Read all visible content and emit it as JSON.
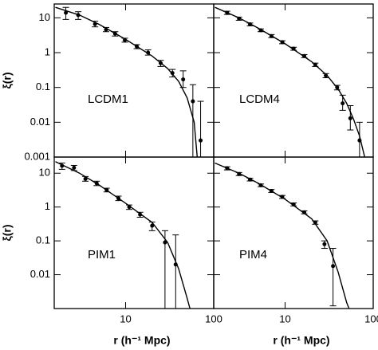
{
  "chart_data": [
    {
      "type": "scatter",
      "label": "LCDM1",
      "ylabel": "ξ(r)",
      "log_x": true,
      "log_y": true,
      "xlim": [
        1.55,
        100
      ],
      "ylim": [
        0.001,
        25
      ],
      "xticks": [
        10,
        100
      ],
      "yticks": [
        0.001,
        0.01,
        0.1,
        1,
        10
      ],
      "points": {
        "x": [
          2.1,
          2.9,
          4.5,
          6.0,
          7.6,
          9.8,
          13.4,
          18,
          25,
          34,
          45,
          58,
          71
        ],
        "y": [
          14,
          12,
          6.6,
          4.6,
          3.5,
          2.3,
          1.5,
          1.0,
          0.5,
          0.26,
          0.17,
          0.04,
          0.003
        ],
        "ylow": [
          9,
          9,
          5.5,
          4,
          3,
          2,
          1.3,
          0.85,
          0.4,
          0.2,
          0.1,
          0.001,
          0.001
        ],
        "yhigh": [
          20,
          15,
          8,
          5.3,
          4,
          2.6,
          1.7,
          1.2,
          0.6,
          0.33,
          0.3,
          0.12,
          0.04
        ]
      },
      "model": {
        "x": [
          1.6,
          3,
          5,
          10,
          20,
          30,
          40,
          50,
          60,
          65
        ],
        "y": [
          20,
          12,
          6.5,
          2.4,
          0.8,
          0.35,
          0.15,
          0.05,
          0.01,
          0.001
        ]
      }
    },
    {
      "type": "scatter",
      "label": "LCDM4",
      "log_x": true,
      "log_y": true,
      "xlim": [
        1.55,
        100
      ],
      "ylim": [
        0.001,
        25
      ],
      "xticks": [
        10,
        100
      ],
      "yticks": [
        0.001,
        0.01,
        0.1,
        1,
        10
      ],
      "points": {
        "x": [
          2.2,
          3,
          4,
          5.3,
          7,
          9.3,
          12.5,
          16.5,
          22,
          29,
          39,
          45,
          55,
          70
        ],
        "y": [
          14,
          9.5,
          6.5,
          4.4,
          3,
          2,
          1.3,
          0.8,
          0.45,
          0.22,
          0.1,
          0.035,
          0.013,
          0.003
        ],
        "ylow": [
          12.5,
          8.5,
          5.9,
          4,
          2.7,
          1.8,
          1.17,
          0.72,
          0.4,
          0.19,
          0.085,
          0.022,
          0.006,
          0.001
        ],
        "yhigh": [
          15.5,
          10.5,
          7.1,
          4.8,
          3.3,
          2.2,
          1.43,
          0.88,
          0.5,
          0.25,
          0.115,
          0.06,
          0.03,
          0.01
        ]
      },
      "model": {
        "x": [
          1.6,
          3,
          5,
          10,
          20,
          30,
          40,
          50,
          60,
          70,
          80
        ],
        "y": [
          20,
          10,
          5,
          1.8,
          0.55,
          0.22,
          0.09,
          0.035,
          0.012,
          0.004,
          0.001
        ]
      }
    },
    {
      "type": "scatter",
      "label": "PIM1",
      "xlabel": "r  (h⁻¹ Mpc)",
      "ylabel": "ξ(r)",
      "log_x": true,
      "log_y": true,
      "xlim": [
        1.55,
        100
      ],
      "ylim": [
        0.001,
        30
      ],
      "xticks": [
        10,
        100
      ],
      "yticks": [
        0.01,
        0.1,
        1,
        10
      ],
      "points": {
        "x": [
          1.9,
          2.6,
          3.5,
          4.7,
          6.1,
          8.3,
          11,
          14.6,
          20,
          28,
          37
        ],
        "y": [
          16.5,
          14.5,
          6.8,
          5,
          3.2,
          1.8,
          1.0,
          0.6,
          0.28,
          0.09,
          0.02
        ],
        "ylow": [
          13,
          12,
          5.8,
          4.3,
          2.8,
          1.55,
          0.85,
          0.5,
          0.2,
          0.001,
          0.001
        ],
        "yhigh": [
          20,
          17,
          8,
          5.8,
          3.6,
          2.1,
          1.15,
          0.7,
          0.36,
          0.2,
          0.15
        ]
      },
      "model": {
        "x": [
          1.6,
          3,
          5,
          10,
          20,
          30,
          40,
          50,
          55
        ],
        "y": [
          22,
          10,
          4.5,
          1.3,
          0.35,
          0.09,
          0.015,
          0.002,
          0.0008
        ]
      }
    },
    {
      "type": "scatter",
      "label": "PIM4",
      "xlabel": "r  (h⁻¹ Mpc)",
      "log_x": true,
      "log_y": true,
      "xlim": [
        1.55,
        100
      ],
      "ylim": [
        0.001,
        30
      ],
      "xticks": [
        10,
        100
      ],
      "yticks": [
        0.01,
        0.1,
        1,
        10
      ],
      "points": {
        "x": [
          2.2,
          3,
          4,
          5.3,
          7,
          9.3,
          12.5,
          16.5,
          22,
          28,
          35
        ],
        "y": [
          14,
          9.5,
          6.5,
          4.4,
          3,
          2,
          1.2,
          0.7,
          0.35,
          0.08,
          0.018
        ],
        "ylow": [
          12.5,
          8.5,
          5.9,
          4,
          2.7,
          1.8,
          1.08,
          0.63,
          0.31,
          0.06,
          0.0012
        ],
        "yhigh": [
          15.5,
          10.5,
          7.1,
          4.8,
          3.3,
          2.2,
          1.32,
          0.77,
          0.39,
          0.1,
          0.06
        ]
      },
      "model": {
        "x": [
          1.6,
          3,
          5,
          10,
          20,
          30,
          40,
          50,
          55
        ],
        "y": [
          20,
          10,
          5,
          1.7,
          0.45,
          0.1,
          0.012,
          0.0015,
          0.0008
        ]
      }
    }
  ]
}
